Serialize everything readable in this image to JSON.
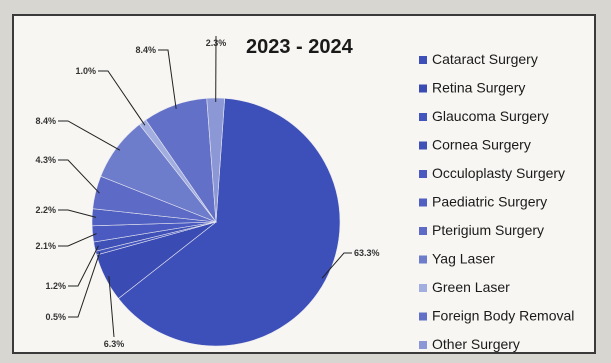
{
  "chart_data": {
    "type": "pie",
    "title": "2023 - 2024",
    "slices": [
      {
        "name": "Cataract Surgery",
        "value": 63.3,
        "label": "63.3%",
        "color": "#3d4fb8"
      },
      {
        "name": "Retina Surgery",
        "value": 6.3,
        "label": "6.3%",
        "color": "#3a4cb4"
      },
      {
        "name": "Glaucoma Surgery",
        "value": 0.5,
        "label": "0.5%",
        "color": "#4454bd"
      },
      {
        "name": "Cornea Surgery",
        "value": 1.2,
        "label": "1.2%",
        "color": "#3f50b6"
      },
      {
        "name": "Occuloplasty Surgery",
        "value": 2.1,
        "label": "2.1%",
        "color": "#4a5ac0"
      },
      {
        "name": "Paediatric Surgery",
        "value": 2.2,
        "label": "2.2%",
        "color": "#5060c2"
      },
      {
        "name": "Pterigium Surgery",
        "value": 4.3,
        "label": "4.3%",
        "color": "#5d6bc6"
      },
      {
        "name": "Yag Laser",
        "value": 8.4,
        "label": "8.4%",
        "color": "#6e7ccc"
      },
      {
        "name": "Green Laser",
        "value": 1.0,
        "label": "1.0%",
        "color": "#a3aee0"
      },
      {
        "name": "Foreign Body Removal",
        "value": 8.4,
        "label": "8.4%",
        "color": "#6270c8"
      },
      {
        "name": "Other Surgery",
        "value": 2.3,
        "label": "2.3%",
        "color": "#8c98d6"
      }
    ],
    "legend_position": "right"
  }
}
